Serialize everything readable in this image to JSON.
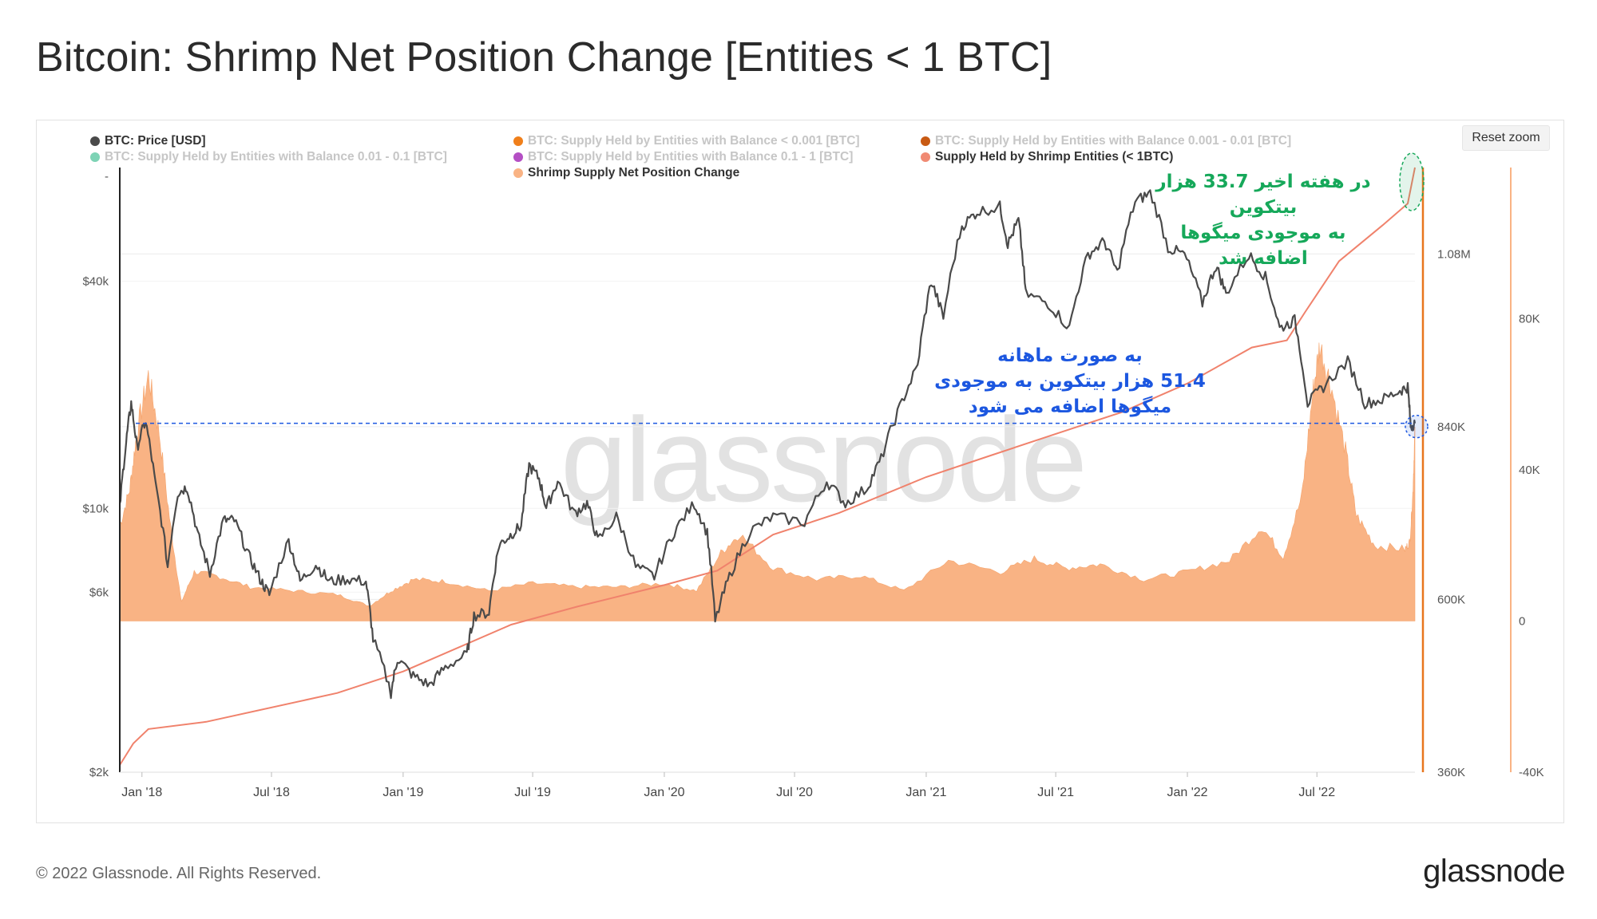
{
  "page": {
    "title": "Bitcoin: Shrimp Net Position Change [Entities < 1 BTC]",
    "reset_zoom": "Reset zoom",
    "watermark": "glassnode",
    "copyright": "© 2022 Glassnode. All Rights Reserved.",
    "logo": "glassnode"
  },
  "legend": [
    {
      "label": "BTC: Price [USD]",
      "color": "#4a4a4a",
      "active": true
    },
    {
      "label": "BTC: Supply Held by Entities with Balance < 0.001 [BTC]",
      "color": "#f07f1a",
      "active": false
    },
    {
      "label": "BTC: Supply Held by Entities with Balance 0.001 - 0.01 [BTC]",
      "color": "#c85a13",
      "active": false
    },
    {
      "label": "BTC: Supply Held by Entities with Balance 0.01 - 0.1 [BTC]",
      "color": "#7dd3b5",
      "active": false
    },
    {
      "label": "BTC: Supply Held by Entities with Balance 0.1 - 1 [BTC]",
      "color": "#b44fc4",
      "active": false
    },
    {
      "label": "Supply Held by Shrimp Entities (< 1BTC)",
      "color": "#f08a73",
      "active": true
    },
    {
      "label": "Shrimp Supply Net Position Change",
      "color": "#f9b384",
      "active": true
    }
  ],
  "annotations": {
    "weekly": [
      "در هفته اخیر 33.7 هزار بیتکوین",
      "به موجودی میگوها",
      "اضافه شد"
    ],
    "monthly": [
      "به صورت ماهانه",
      "51.4 هزار بیتکوین به موجودی",
      "میگوها اضافه می شود"
    ]
  },
  "colors": {
    "price": "#4a4a4a",
    "supply": "#f0826c",
    "net_change_fill": "#f9b384",
    "axis_supply": "#e8761e",
    "axis_net": "#f9b384",
    "annotation_green": "#16a85a",
    "annotation_blue": "#1c57e0"
  },
  "chart_data": {
    "type": "line",
    "x_range": [
      "2017-12-01",
      "2022-11-15"
    ],
    "x_ticks": [
      "Jan '18",
      "Jul '18",
      "Jan '19",
      "Jul '19",
      "Jan '20",
      "Jul '20",
      "Jan '21",
      "Jul '21",
      "Jan '22",
      "Jul '22"
    ],
    "x_tick_dates": [
      "2018-01-01",
      "2018-07-01",
      "2019-01-01",
      "2019-07-01",
      "2020-01-01",
      "2020-07-01",
      "2021-01-01",
      "2021-07-01",
      "2022-01-01",
      "2022-07-01"
    ],
    "axes": {
      "price": {
        "scale": "log",
        "range": [
          2000,
          80000
        ],
        "ticks": [
          "$2k",
          "$6k",
          "$10k",
          "$40k"
        ],
        "tick_values": [
          2000,
          6000,
          10000,
          40000
        ],
        "top_label": "-"
      },
      "supply": {
        "scale": "linear",
        "range": [
          360000,
          1200000
        ],
        "ticks": [
          "360K",
          "600K",
          "840K",
          "1.08M"
        ],
        "tick_values": [
          360000,
          600000,
          840000,
          1080000
        ]
      },
      "net_change": {
        "scale": "linear",
        "range": [
          -40000,
          120000
        ],
        "ticks": [
          "-40K",
          "0",
          "40K",
          "80K"
        ],
        "tick_values": [
          -40000,
          0,
          40000,
          80000
        ]
      }
    },
    "series": [
      {
        "name": "BTC: Price [USD]",
        "axis": "price",
        "points": [
          [
            "2017-12-01",
            10000
          ],
          [
            "2017-12-10",
            15000
          ],
          [
            "2017-12-17",
            19000
          ],
          [
            "2017-12-25",
            14500
          ],
          [
            "2018-01-06",
            17000
          ],
          [
            "2018-01-20",
            11500
          ],
          [
            "2018-02-06",
            7000
          ],
          [
            "2018-02-20",
            11000
          ],
          [
            "2018-03-05",
            11400
          ],
          [
            "2018-03-20",
            8500
          ],
          [
            "2018-04-06",
            6700
          ],
          [
            "2018-04-25",
            9300
          ],
          [
            "2018-05-10",
            9300
          ],
          [
            "2018-05-30",
            7500
          ],
          [
            "2018-06-15",
            6500
          ],
          [
            "2018-06-28",
            5900
          ],
          [
            "2018-07-25",
            8200
          ],
          [
            "2018-08-10",
            6400
          ],
          [
            "2018-09-01",
            7100
          ],
          [
            "2018-09-20",
            6400
          ],
          [
            "2018-10-15",
            6500
          ],
          [
            "2018-11-10",
            6400
          ],
          [
            "2018-11-20",
            4500
          ],
          [
            "2018-12-15",
            3250
          ],
          [
            "2018-12-24",
            4000
          ],
          [
            "2019-01-15",
            3600
          ],
          [
            "2019-02-07",
            3400
          ],
          [
            "2019-03-01",
            3800
          ],
          [
            "2019-03-31",
            4100
          ],
          [
            "2019-04-10",
            5200
          ],
          [
            "2019-05-01",
            5300
          ],
          [
            "2019-05-15",
            8000
          ],
          [
            "2019-05-31",
            8500
          ],
          [
            "2019-06-15",
            9000
          ],
          [
            "2019-06-26",
            13000
          ],
          [
            "2019-07-10",
            12000
          ],
          [
            "2019-07-20",
            10000
          ],
          [
            "2019-08-05",
            11800
          ],
          [
            "2019-08-28",
            9700
          ],
          [
            "2019-09-15",
            10300
          ],
          [
            "2019-09-30",
            8200
          ],
          [
            "2019-10-26",
            9500
          ],
          [
            "2019-11-22",
            7000
          ],
          [
            "2019-12-18",
            6600
          ],
          [
            "2020-01-15",
            8700
          ],
          [
            "2020-02-12",
            10300
          ],
          [
            "2020-03-01",
            8600
          ],
          [
            "2020-03-12",
            5000
          ],
          [
            "2020-04-01",
            6600
          ],
          [
            "2020-04-30",
            8700
          ],
          [
            "2020-06-01",
            9500
          ],
          [
            "2020-07-15",
            9200
          ],
          [
            "2020-08-15",
            11800
          ],
          [
            "2020-09-10",
            10300
          ],
          [
            "2020-10-10",
            11300
          ],
          [
            "2020-10-30",
            13500
          ],
          [
            "2020-11-25",
            18500
          ],
          [
            "2020-12-20",
            23800
          ],
          [
            "2021-01-08",
            40000
          ],
          [
            "2021-01-25",
            32000
          ],
          [
            "2021-02-20",
            56000
          ],
          [
            "2021-03-13",
            61000
          ],
          [
            "2021-04-14",
            63000
          ],
          [
            "2021-04-25",
            50000
          ],
          [
            "2021-05-10",
            58000
          ],
          [
            "2021-05-20",
            37000
          ],
          [
            "2021-06-20",
            35000
          ],
          [
            "2021-07-20",
            30000
          ],
          [
            "2021-08-15",
            47000
          ],
          [
            "2021-09-07",
            51000
          ],
          [
            "2021-09-25",
            42000
          ],
          [
            "2021-10-20",
            65000
          ],
          [
            "2021-11-10",
            68500
          ],
          [
            "2021-12-05",
            49000
          ],
          [
            "2021-12-28",
            47000
          ],
          [
            "2022-01-22",
            35000
          ],
          [
            "2022-02-10",
            44000
          ],
          [
            "2022-02-24",
            37000
          ],
          [
            "2022-03-28",
            47000
          ],
          [
            "2022-04-20",
            41000
          ],
          [
            "2022-05-10",
            30000
          ],
          [
            "2022-05-31",
            31500
          ],
          [
            "2022-06-18",
            19000
          ],
          [
            "2022-07-10",
            21000
          ],
          [
            "2022-08-13",
            24500
          ],
          [
            "2022-09-06",
            19000
          ],
          [
            "2022-09-30",
            19400
          ],
          [
            "2022-10-25",
            20500
          ],
          [
            "2022-11-05",
            21000
          ],
          [
            "2022-11-09",
            16500
          ],
          [
            "2022-11-15",
            16800
          ]
        ]
      },
      {
        "name": "Supply Held by Shrimp Entities (< 1BTC)",
        "axis": "supply",
        "points": [
          [
            "2017-12-01",
            370000
          ],
          [
            "2017-12-20",
            400000
          ],
          [
            "2018-01-10",
            420000
          ],
          [
            "2018-04-01",
            430000
          ],
          [
            "2018-10-01",
            470000
          ],
          [
            "2019-01-01",
            500000
          ],
          [
            "2019-06-01",
            565000
          ],
          [
            "2019-09-01",
            590000
          ],
          [
            "2020-01-01",
            620000
          ],
          [
            "2020-03-15",
            640000
          ],
          [
            "2020-06-01",
            690000
          ],
          [
            "2020-09-01",
            720000
          ],
          [
            "2021-01-01",
            770000
          ],
          [
            "2021-04-01",
            800000
          ],
          [
            "2021-07-01",
            830000
          ],
          [
            "2021-10-01",
            860000
          ],
          [
            "2022-01-01",
            900000
          ],
          [
            "2022-04-01",
            950000
          ],
          [
            "2022-05-20",
            960000
          ],
          [
            "2022-06-15",
            1000000
          ],
          [
            "2022-08-01",
            1070000
          ],
          [
            "2022-10-01",
            1120000
          ],
          [
            "2022-11-05",
            1150000
          ],
          [
            "2022-11-15",
            1200000
          ]
        ]
      },
      {
        "name": "Shrimp Supply Net Position Change",
        "axis": "net_change",
        "type": "area",
        "points": [
          [
            "2017-12-01",
            25000
          ],
          [
            "2017-12-15",
            35000
          ],
          [
            "2017-12-25",
            50000
          ],
          [
            "2018-01-10",
            65000
          ],
          [
            "2018-01-25",
            50000
          ],
          [
            "2018-02-10",
            25000
          ],
          [
            "2018-02-25",
            5000
          ],
          [
            "2018-03-15",
            13000
          ],
          [
            "2018-04-15",
            12000
          ],
          [
            "2018-06-01",
            9000
          ],
          [
            "2018-08-01",
            8000
          ],
          [
            "2018-10-01",
            7000
          ],
          [
            "2018-11-15",
            4000
          ],
          [
            "2018-12-15",
            8000
          ],
          [
            "2019-01-15",
            11000
          ],
          [
            "2019-03-01",
            10500
          ],
          [
            "2019-05-01",
            8000
          ],
          [
            "2019-07-01",
            10000
          ],
          [
            "2019-09-01",
            9000
          ],
          [
            "2019-11-01",
            9000
          ],
          [
            "2020-01-01",
            10000
          ],
          [
            "2020-02-15",
            8000
          ],
          [
            "2020-03-20",
            18000
          ],
          [
            "2020-04-15",
            23000
          ],
          [
            "2020-06-01",
            14000
          ],
          [
            "2020-08-01",
            11000
          ],
          [
            "2020-10-01",
            12000
          ],
          [
            "2020-12-01",
            8000
          ],
          [
            "2021-02-01",
            16000
          ],
          [
            "2021-04-15",
            13000
          ],
          [
            "2021-06-01",
            16500
          ],
          [
            "2021-07-15",
            14000
          ],
          [
            "2021-09-01",
            15000
          ],
          [
            "2021-11-01",
            11000
          ],
          [
            "2022-01-01",
            13000
          ],
          [
            "2022-03-01",
            16000
          ],
          [
            "2022-04-15",
            25000
          ],
          [
            "2022-05-15",
            17000
          ],
          [
            "2022-06-10",
            33000
          ],
          [
            "2022-06-25",
            60000
          ],
          [
            "2022-07-05",
            73000
          ],
          [
            "2022-07-20",
            63000
          ],
          [
            "2022-08-10",
            45000
          ],
          [
            "2022-08-25",
            28000
          ],
          [
            "2022-09-20",
            20000
          ],
          [
            "2022-11-01",
            19000
          ],
          [
            "2022-11-08",
            21000
          ],
          [
            "2022-11-12",
            33700
          ],
          [
            "2022-11-15",
            51400
          ]
        ]
      }
    ]
  }
}
